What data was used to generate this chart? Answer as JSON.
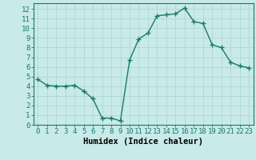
{
  "x": [
    0,
    1,
    2,
    3,
    4,
    5,
    6,
    7,
    8,
    9,
    10,
    11,
    12,
    13,
    14,
    15,
    16,
    17,
    18,
    19,
    20,
    21,
    22,
    23
  ],
  "y": [
    4.7,
    4.1,
    4.0,
    4.0,
    4.1,
    3.5,
    2.7,
    0.7,
    0.7,
    0.4,
    6.7,
    8.9,
    9.5,
    11.3,
    11.4,
    11.5,
    12.1,
    10.7,
    10.5,
    8.3,
    8.0,
    6.5,
    6.1,
    5.9
  ],
  "xlabel": "Humidex (Indice chaleur)",
  "xlim": [
    -0.5,
    23.5
  ],
  "ylim": [
    0,
    12.6
  ],
  "xticks": [
    0,
    1,
    2,
    3,
    4,
    5,
    6,
    7,
    8,
    9,
    10,
    11,
    12,
    13,
    14,
    15,
    16,
    17,
    18,
    19,
    20,
    21,
    22,
    23
  ],
  "yticks": [
    0,
    1,
    2,
    3,
    4,
    5,
    6,
    7,
    8,
    9,
    10,
    11,
    12
  ],
  "line_color": "#1a7a6a",
  "bg_color": "#c8eae8",
  "grid_color": "#b0d8d4",
  "tick_label_fontsize": 6.5,
  "xlabel_fontsize": 7.5
}
